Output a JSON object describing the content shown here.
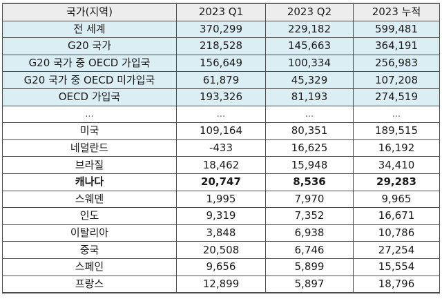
{
  "table": {
    "headers": [
      "국가(지역)",
      "2023 Q1",
      "2023 Q2",
      "2023 누적"
    ],
    "colors": {
      "header_bg": "#ededed",
      "highlight_bg": "#daeef3",
      "border": "#4a4a4a"
    },
    "rows": [
      {
        "cells": [
          "전 세계",
          "370,299",
          "229,182",
          "599,481"
        ],
        "highlight": true,
        "bold": false
      },
      {
        "cells": [
          "G20 국가",
          "218,528",
          "145,663",
          "364,191"
        ],
        "highlight": true,
        "bold": false
      },
      {
        "cells": [
          "G20 국가 중 OECD 가입국",
          "156,649",
          "100,334",
          "256,983"
        ],
        "highlight": true,
        "bold": false
      },
      {
        "cells": [
          "G20 국가 중 OECD 미가입국",
          "61,879",
          "45,329",
          "107,208"
        ],
        "highlight": true,
        "bold": false
      },
      {
        "cells": [
          "OECD 가입국",
          "193,326",
          "81,193",
          "274,519"
        ],
        "highlight": true,
        "bold": false
      },
      {
        "cells": [
          "...",
          "...",
          "...",
          "..."
        ],
        "highlight": false,
        "bold": false,
        "ellipsis": true
      },
      {
        "cells": [
          "미국",
          "109,164",
          "80,351",
          "189,515"
        ],
        "highlight": false,
        "bold": false
      },
      {
        "cells": [
          "네덜란드",
          "-433",
          "16,625",
          "16,192"
        ],
        "highlight": false,
        "bold": false
      },
      {
        "cells": [
          "브라질",
          "18,462",
          "15,948",
          "34,410"
        ],
        "highlight": false,
        "bold": false
      },
      {
        "cells": [
          "캐나다",
          "20,747",
          "8,536",
          "29,283"
        ],
        "highlight": false,
        "bold": true
      },
      {
        "cells": [
          "스웨덴",
          "1,995",
          "7,970",
          "9,965"
        ],
        "highlight": false,
        "bold": false
      },
      {
        "cells": [
          "인도",
          "9,319",
          "7,352",
          "16,671"
        ],
        "highlight": false,
        "bold": false
      },
      {
        "cells": [
          "이탈리아",
          "3,848",
          "6,938",
          "10,786"
        ],
        "highlight": false,
        "bold": false
      },
      {
        "cells": [
          "중국",
          "20,508",
          "6,746",
          "27,254"
        ],
        "highlight": false,
        "bold": false
      },
      {
        "cells": [
          "스페인",
          "9,656",
          "5,899",
          "15,554"
        ],
        "highlight": false,
        "bold": false
      },
      {
        "cells": [
          "프랑스",
          "12,899",
          "5,897",
          "18,796"
        ],
        "highlight": false,
        "bold": false
      }
    ]
  }
}
